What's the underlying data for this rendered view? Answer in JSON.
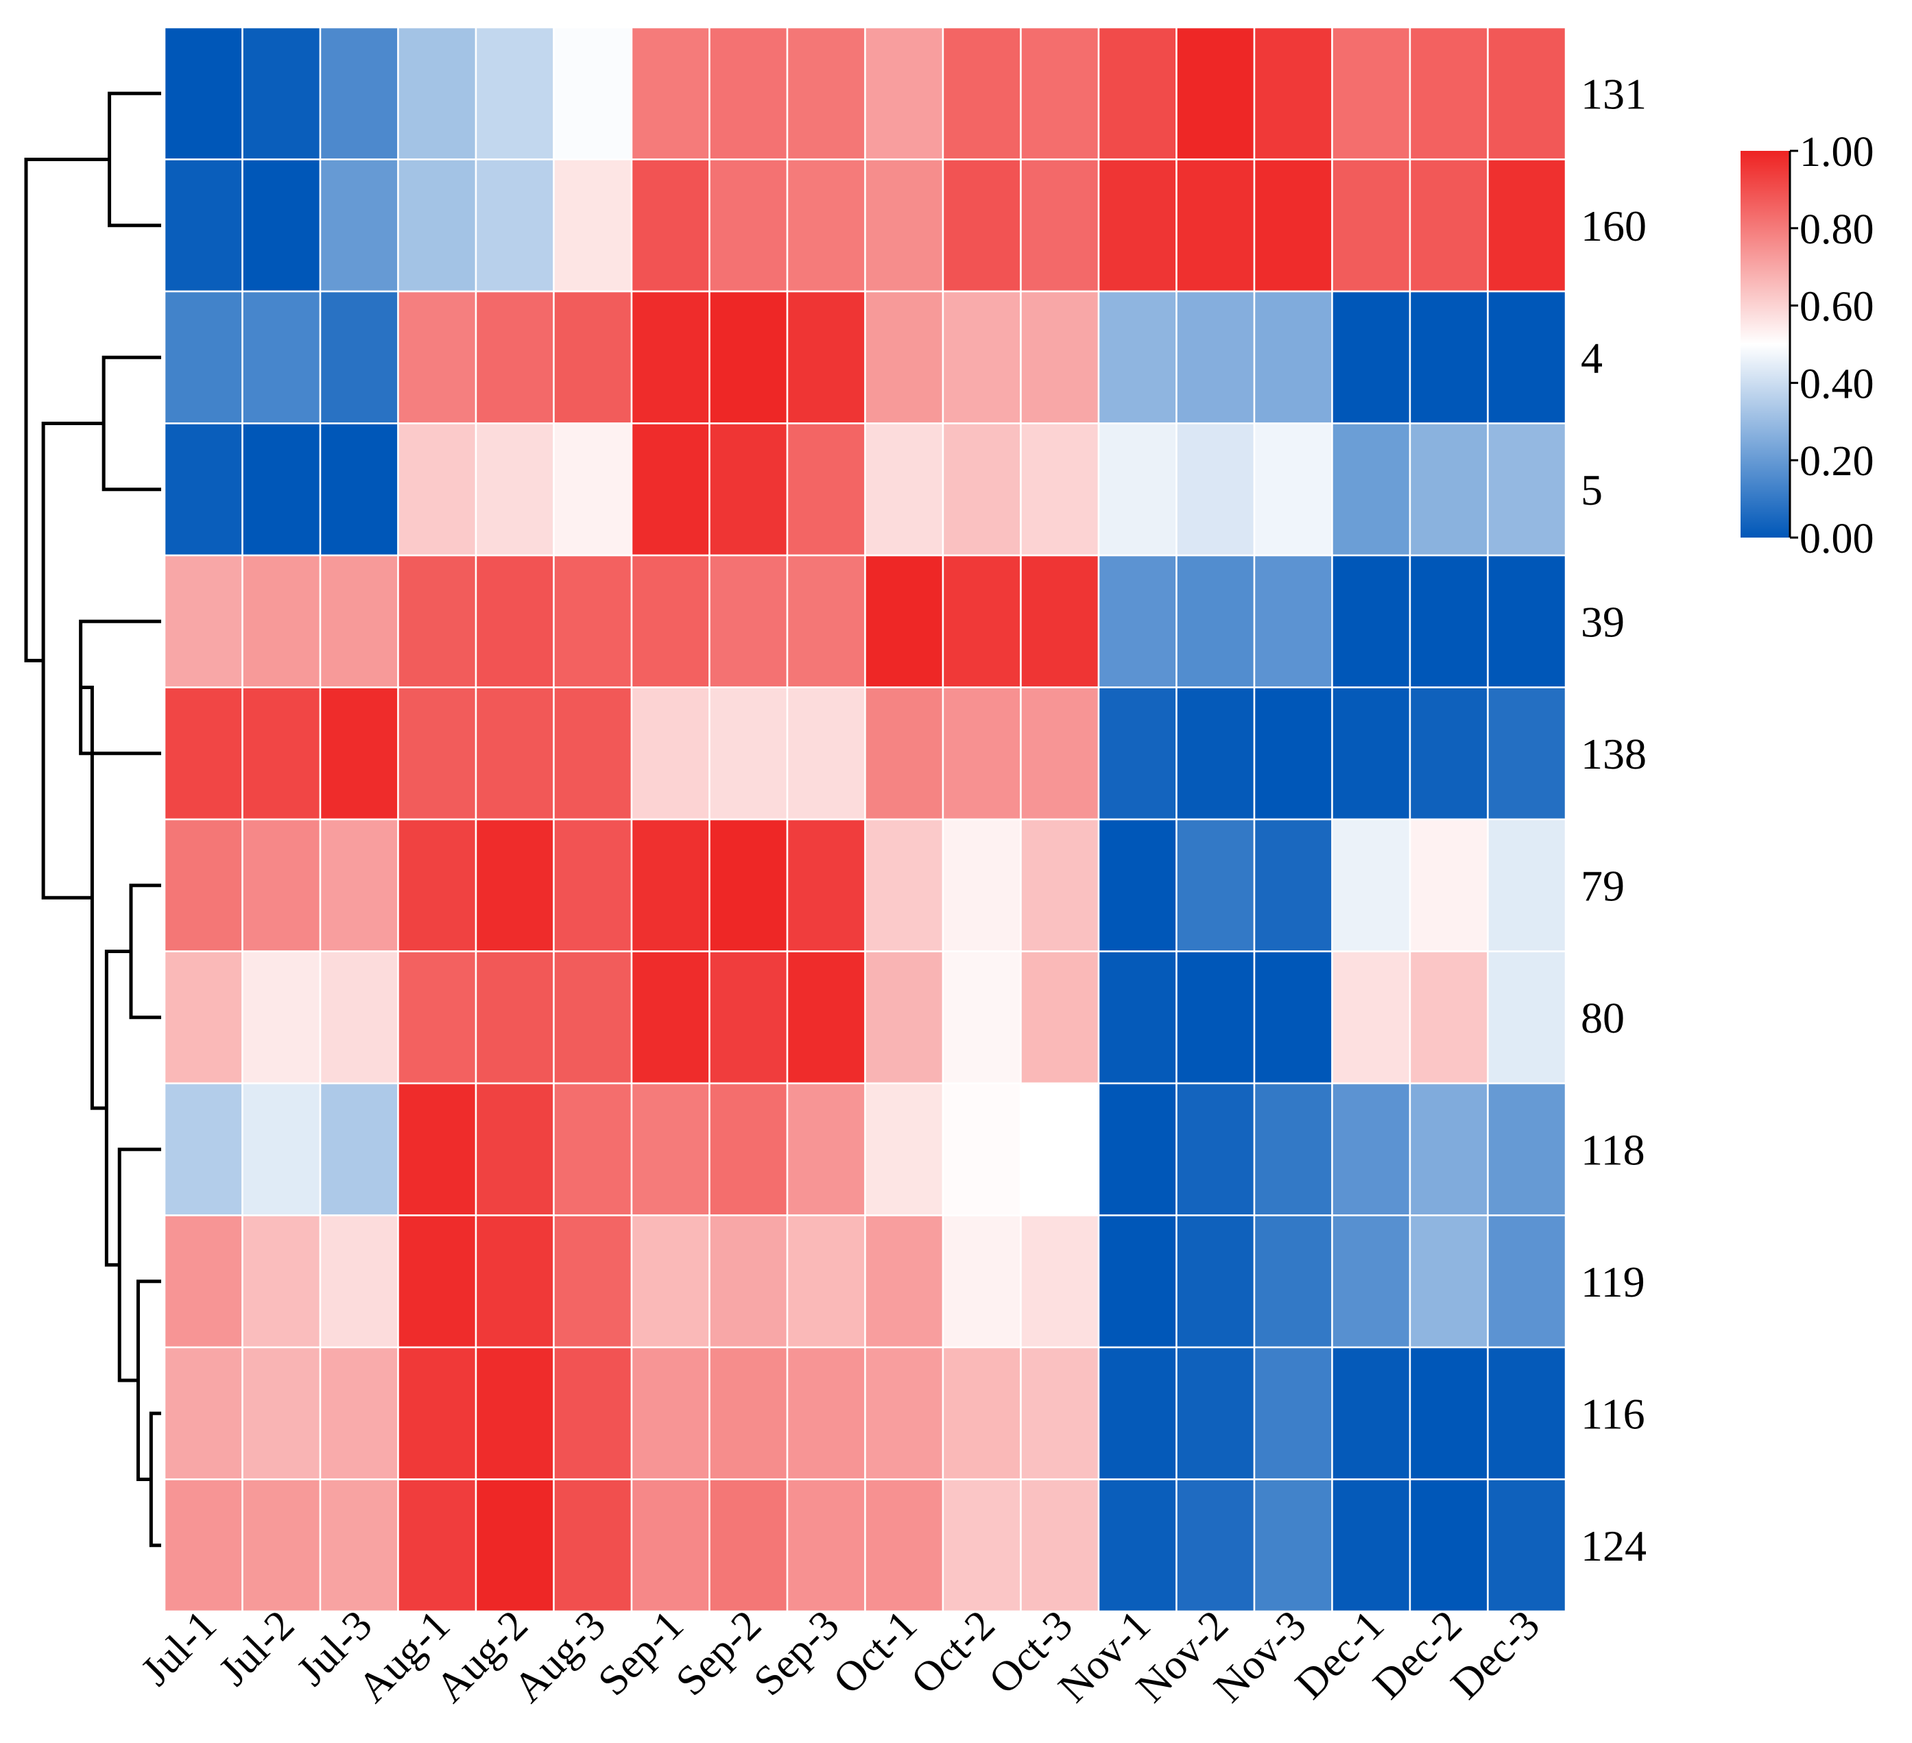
{
  "chart_data": {
    "type": "heatmap",
    "title": "",
    "columns": [
      "Jul-1",
      "Jul-2",
      "Jul-3",
      "Aug-1",
      "Aug-2",
      "Aug-3",
      "Sep-1",
      "Sep-2",
      "Sep-3",
      "Oct-1",
      "Oct-2",
      "Oct-3",
      "Nov-1",
      "Nov-2",
      "Nov-3",
      "Dec-1",
      "Dec-2",
      "Dec-3"
    ],
    "rows": [
      "131",
      "160",
      "4",
      "5",
      "39",
      "138",
      "79",
      "80",
      "118",
      "119",
      "116",
      "124"
    ],
    "values": [
      [
        0.0,
        0.02,
        0.15,
        0.32,
        0.38,
        0.49,
        0.8,
        0.82,
        0.81,
        0.72,
        0.85,
        0.83,
        0.91,
        0.99,
        0.95,
        0.83,
        0.86,
        0.88
      ],
      [
        0.02,
        0.0,
        0.2,
        0.32,
        0.36,
        0.56,
        0.89,
        0.82,
        0.8,
        0.76,
        0.89,
        0.84,
        0.96,
        0.97,
        0.98,
        0.87,
        0.88,
        0.97
      ],
      [
        0.13,
        0.14,
        0.08,
        0.79,
        0.84,
        0.87,
        0.98,
        0.99,
        0.96,
        0.73,
        0.69,
        0.7,
        0.28,
        0.26,
        0.25,
        0.0,
        0.0,
        0.0
      ],
      [
        0.02,
        0.0,
        0.0,
        0.62,
        0.58,
        0.53,
        0.98,
        0.96,
        0.85,
        0.58,
        0.64,
        0.6,
        0.46,
        0.43,
        0.47,
        0.21,
        0.27,
        0.29
      ],
      [
        0.7,
        0.73,
        0.73,
        0.87,
        0.89,
        0.86,
        0.86,
        0.82,
        0.81,
        0.99,
        0.95,
        0.96,
        0.18,
        0.16,
        0.18,
        0.0,
        0.0,
        0.0
      ],
      [
        0.92,
        0.92,
        0.98,
        0.87,
        0.88,
        0.88,
        0.6,
        0.58,
        0.58,
        0.78,
        0.75,
        0.74,
        0.04,
        0.01,
        0.0,
        0.01,
        0.03,
        0.07
      ],
      [
        0.81,
        0.77,
        0.72,
        0.93,
        0.98,
        0.89,
        0.97,
        0.99,
        0.94,
        0.62,
        0.53,
        0.64,
        0.0,
        0.1,
        0.05,
        0.46,
        0.53,
        0.44
      ],
      [
        0.66,
        0.55,
        0.58,
        0.86,
        0.88,
        0.87,
        0.98,
        0.94,
        0.98,
        0.67,
        0.52,
        0.66,
        0.01,
        0.0,
        0.0,
        0.57,
        0.63,
        0.44
      ],
      [
        0.35,
        0.44,
        0.34,
        0.98,
        0.93,
        0.83,
        0.8,
        0.83,
        0.74,
        0.56,
        0.51,
        0.5,
        0.0,
        0.04,
        0.1,
        0.18,
        0.25,
        0.2
      ],
      [
        0.74,
        0.65,
        0.58,
        0.98,
        0.95,
        0.85,
        0.66,
        0.7,
        0.66,
        0.72,
        0.53,
        0.57,
        0.0,
        0.03,
        0.1,
        0.17,
        0.28,
        0.18
      ],
      [
        0.7,
        0.67,
        0.69,
        0.95,
        0.98,
        0.89,
        0.74,
        0.76,
        0.74,
        0.72,
        0.66,
        0.64,
        0.01,
        0.03,
        0.12,
        0.01,
        0.0,
        0.01
      ],
      [
        0.74,
        0.73,
        0.71,
        0.94,
        0.99,
        0.9,
        0.77,
        0.81,
        0.75,
        0.75,
        0.63,
        0.64,
        0.02,
        0.06,
        0.13,
        0.01,
        0.0,
        0.03
      ]
    ],
    "colorbar": {
      "min": 0.0,
      "max": 1.0,
      "ticks": [
        "0.00",
        "0.20",
        "0.40",
        "0.60",
        "0.80",
        "1.00"
      ]
    },
    "colors": {
      "low": "#0057b8",
      "mid": "#ffffff",
      "high": "#ee2322"
    },
    "dendrogram": {
      "side": "left",
      "merges": [
        [
          "A",
          "131",
          "160",
          0.36
        ],
        [
          "B",
          "4",
          "5",
          0.4
        ],
        [
          "C",
          "39",
          "138",
          0.56
        ],
        [
          "D",
          "79",
          "80",
          0.21
        ],
        [
          "E",
          "116",
          "124",
          0.07
        ],
        [
          "F",
          "119",
          "E",
          0.16
        ],
        [
          "G",
          "118",
          "F",
          0.29
        ],
        [
          "H",
          "D",
          "G",
          0.38
        ],
        [
          "I",
          "C",
          "H",
          0.48
        ],
        [
          "J",
          "B",
          "I",
          0.82
        ],
        [
          "K",
          "A",
          "J",
          0.94
        ]
      ]
    }
  }
}
